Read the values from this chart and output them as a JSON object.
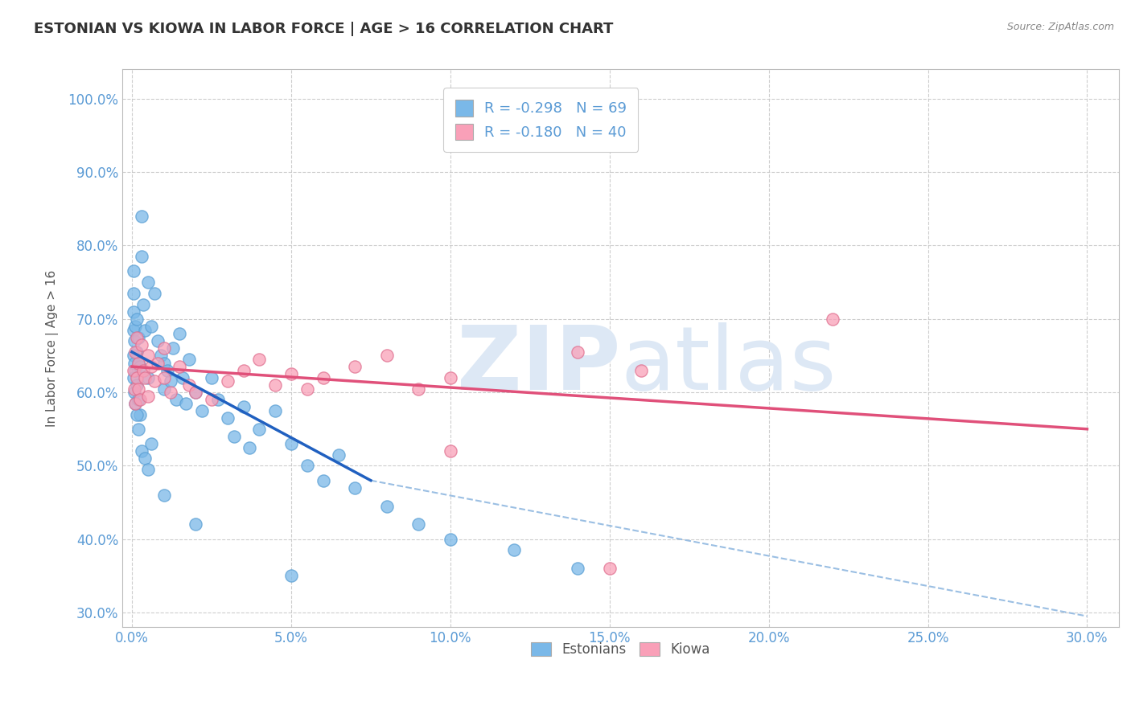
{
  "title": "ESTONIAN VS KIOWA IN LABOR FORCE | AGE > 16 CORRELATION CHART",
  "source_text": "Source: ZipAtlas.com",
  "xlim": [
    -0.3,
    31.0
  ],
  "ylim": [
    28.0,
    104.0
  ],
  "x_ticks": [
    0.0,
    5.0,
    10.0,
    15.0,
    20.0,
    25.0,
    30.0
  ],
  "y_ticks": [
    30.0,
    40.0,
    50.0,
    60.0,
    70.0,
    80.0,
    90.0,
    100.0
  ],
  "estonian_color": "#7ab8e8",
  "estonian_edge": "#5a9fd4",
  "kiowa_color": "#f9a0b8",
  "kiowa_edge": "#e07090",
  "axis_label_color": "#5b9bd5",
  "grid_color": "#c8c8c8",
  "estonian_r": -0.298,
  "estonian_n": 69,
  "kiowa_r": -0.18,
  "kiowa_n": 40,
  "trend_est_color": "#2060c0",
  "trend_kiowa_color": "#e0507a",
  "trend_dash_color": "#90b8e0",
  "watermark_color": "#dde8f5",
  "est_trend_x": [
    0.0,
    7.5
  ],
  "est_trend_y": [
    65.5,
    48.0
  ],
  "kiowa_trend_x": [
    0.0,
    30.0
  ],
  "kiowa_trend_y": [
    63.5,
    55.0
  ],
  "dash_trend_x": [
    7.5,
    30.0
  ],
  "dash_trend_y": [
    48.0,
    29.5
  ],
  "estonians_scatter": [
    [
      0.05,
      65.0
    ],
    [
      0.05,
      62.0
    ],
    [
      0.05,
      68.5
    ],
    [
      0.05,
      71.0
    ],
    [
      0.05,
      73.5
    ],
    [
      0.05,
      76.5
    ],
    [
      0.08,
      64.0
    ],
    [
      0.08,
      60.0
    ],
    [
      0.08,
      67.0
    ],
    [
      0.1,
      63.0
    ],
    [
      0.1,
      69.0
    ],
    [
      0.1,
      58.5
    ],
    [
      0.15,
      65.5
    ],
    [
      0.15,
      61.0
    ],
    [
      0.15,
      70.0
    ],
    [
      0.2,
      64.0
    ],
    [
      0.2,
      67.5
    ],
    [
      0.2,
      59.0
    ],
    [
      0.25,
      63.5
    ],
    [
      0.25,
      57.0
    ],
    [
      0.3,
      78.5
    ],
    [
      0.35,
      72.0
    ],
    [
      0.4,
      68.5
    ],
    [
      0.5,
      75.0
    ],
    [
      0.5,
      62.0
    ],
    [
      0.6,
      69.0
    ],
    [
      0.7,
      73.5
    ],
    [
      0.8,
      67.0
    ],
    [
      0.9,
      65.0
    ],
    [
      1.0,
      64.0
    ],
    [
      1.0,
      60.5
    ],
    [
      1.1,
      63.0
    ],
    [
      1.2,
      61.5
    ],
    [
      1.3,
      66.0
    ],
    [
      1.4,
      59.0
    ],
    [
      1.5,
      68.0
    ],
    [
      1.6,
      62.0
    ],
    [
      1.7,
      58.5
    ],
    [
      1.8,
      64.5
    ],
    [
      2.0,
      60.0
    ],
    [
      2.2,
      57.5
    ],
    [
      2.5,
      62.0
    ],
    [
      2.7,
      59.0
    ],
    [
      3.0,
      56.5
    ],
    [
      3.2,
      54.0
    ],
    [
      3.5,
      58.0
    ],
    [
      3.7,
      52.5
    ],
    [
      4.0,
      55.0
    ],
    [
      4.5,
      57.5
    ],
    [
      5.0,
      53.0
    ],
    [
      5.5,
      50.0
    ],
    [
      6.0,
      48.0
    ],
    [
      6.5,
      51.5
    ],
    [
      7.0,
      47.0
    ],
    [
      8.0,
      44.5
    ],
    [
      9.0,
      42.0
    ],
    [
      10.0,
      40.0
    ],
    [
      12.0,
      38.5
    ],
    [
      14.0,
      36.0
    ],
    [
      0.3,
      84.0
    ],
    [
      0.15,
      57.0
    ],
    [
      0.2,
      55.0
    ],
    [
      0.3,
      52.0
    ],
    [
      0.4,
      51.0
    ],
    [
      0.5,
      49.5
    ],
    [
      0.6,
      53.0
    ],
    [
      1.0,
      46.0
    ],
    [
      2.0,
      42.0
    ],
    [
      5.0,
      35.0
    ]
  ],
  "kiowa_scatter": [
    [
      0.05,
      63.0
    ],
    [
      0.08,
      60.5
    ],
    [
      0.1,
      65.5
    ],
    [
      0.1,
      58.5
    ],
    [
      0.15,
      67.5
    ],
    [
      0.15,
      62.0
    ],
    [
      0.2,
      64.0
    ],
    [
      0.2,
      60.5
    ],
    [
      0.25,
      59.0
    ],
    [
      0.3,
      66.5
    ],
    [
      0.35,
      63.0
    ],
    [
      0.4,
      62.0
    ],
    [
      0.5,
      65.0
    ],
    [
      0.5,
      59.5
    ],
    [
      0.6,
      63.5
    ],
    [
      0.7,
      61.5
    ],
    [
      0.8,
      64.0
    ],
    [
      1.0,
      62.0
    ],
    [
      1.0,
      66.0
    ],
    [
      1.2,
      60.0
    ],
    [
      1.5,
      63.5
    ],
    [
      1.8,
      61.0
    ],
    [
      2.0,
      60.0
    ],
    [
      2.5,
      59.0
    ],
    [
      3.0,
      61.5
    ],
    [
      3.5,
      63.0
    ],
    [
      4.0,
      64.5
    ],
    [
      4.5,
      61.0
    ],
    [
      5.0,
      62.5
    ],
    [
      5.5,
      60.5
    ],
    [
      6.0,
      62.0
    ],
    [
      7.0,
      63.5
    ],
    [
      8.0,
      65.0
    ],
    [
      9.0,
      60.5
    ],
    [
      10.0,
      62.0
    ],
    [
      14.0,
      65.5
    ],
    [
      16.0,
      63.0
    ],
    [
      22.0,
      70.0
    ],
    [
      10.0,
      52.0
    ],
    [
      15.0,
      36.0
    ]
  ]
}
